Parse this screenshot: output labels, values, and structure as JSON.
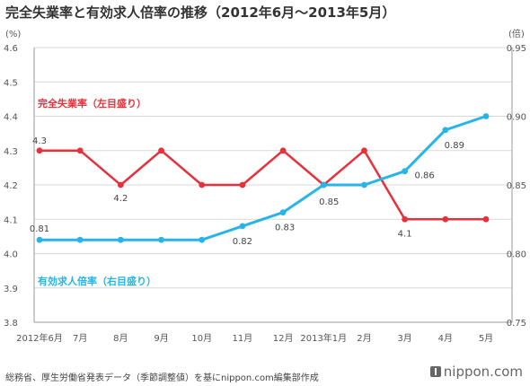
{
  "title": "完全失業率と有効求人倍率の推移（2012年6月〜2013年5月）",
  "footer": "総務省、厚生労働省発表データ（季節調整値）を基にnippon.com編集部作成",
  "brand": "nippon.com",
  "colors": {
    "unemployment": "#e8303a",
    "ratio": "#27b4e6",
    "grid": "#d9d9d9",
    "axis": "#999999"
  },
  "chart_data": {
    "type": "line",
    "categories": [
      "2012年6月",
      "7月",
      "8月",
      "9月",
      "10月",
      "11月",
      "12月",
      "2013年1月",
      "2月",
      "3月",
      "4月",
      "5月"
    ],
    "y_left": {
      "unit": "(%)",
      "lim": [
        3.8,
        4.6
      ],
      "ticks": [
        "4.6",
        "4.5",
        "4.4",
        "4.3",
        "4.2",
        "4.1",
        "4.0",
        "3.9",
        "3.8"
      ]
    },
    "y_right": {
      "unit": "(倍)",
      "lim": [
        0.75,
        0.95
      ],
      "ticks": [
        "0.95",
        "0.90",
        "0.85",
        "0.80",
        "0.75"
      ]
    },
    "grid": true,
    "series": [
      {
        "name": "完全失業率（左目盛り）",
        "axis": "left",
        "values": [
          4.3,
          4.3,
          4.2,
          4.3,
          4.2,
          4.2,
          4.3,
          4.2,
          4.3,
          4.1,
          4.1,
          4.1
        ],
        "data_labels": [
          {
            "index": 0,
            "text": "4.3"
          },
          {
            "index": 2,
            "text": "4.2"
          },
          {
            "index": 9,
            "text": "4.1"
          }
        ]
      },
      {
        "name": "有効求人倍率（右目盛り）",
        "axis": "right",
        "values": [
          0.81,
          0.81,
          0.81,
          0.81,
          0.81,
          0.82,
          0.83,
          0.85,
          0.85,
          0.86,
          0.89,
          0.9
        ],
        "data_labels": [
          {
            "index": 0,
            "text": "0.81"
          },
          {
            "index": 5,
            "text": "0.82"
          },
          {
            "index": 6,
            "text": "0.83"
          },
          {
            "index": 7,
            "text": "0.85"
          },
          {
            "index": 9,
            "text": "0.86"
          },
          {
            "index": 10,
            "text": "0.89"
          }
        ]
      }
    ]
  }
}
